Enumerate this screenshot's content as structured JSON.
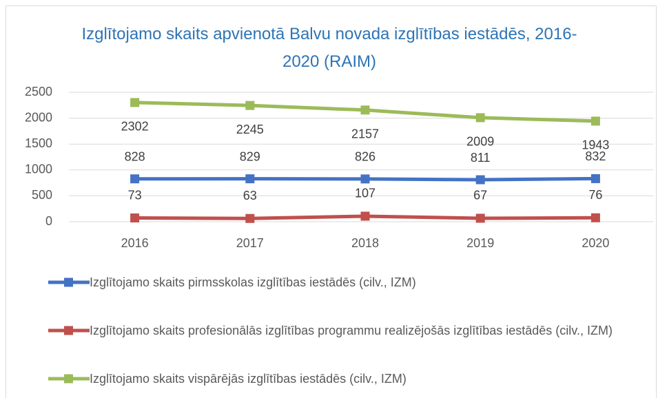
{
  "chart_data": {
    "type": "line",
    "title": "Izglītojamo skaits apvienotā Balvu novada izglītības iestādēs, 2016-2020 (RAIM)",
    "categories": [
      "2016",
      "2017",
      "2018",
      "2019",
      "2020"
    ],
    "series": [
      {
        "name": "Izglītojamo skaits pirmsskolas izglītības iestādēs (cilv., IZM)",
        "color": "#4472c4",
        "values": [
          828,
          829,
          826,
          811,
          832
        ]
      },
      {
        "name": "Izglītojamo skaits profesionālās izglītības programmu realizējošās izglītības iestādēs (cilv., IZM)",
        "color": "#c0504d",
        "values": [
          73,
          63,
          107,
          67,
          76
        ]
      },
      {
        "name": "Izglītojamo skaits vispārējās izglītības iestādēs (cilv., IZM)",
        "color": "#9bbb59",
        "values": [
          2302,
          2245,
          2157,
          2009,
          1943
        ]
      }
    ],
    "ylim": [
      0,
      2500
    ],
    "yticks": [
      0,
      500,
      1000,
      1500,
      2000,
      2500
    ],
    "grid": true,
    "legend": "bottom"
  }
}
